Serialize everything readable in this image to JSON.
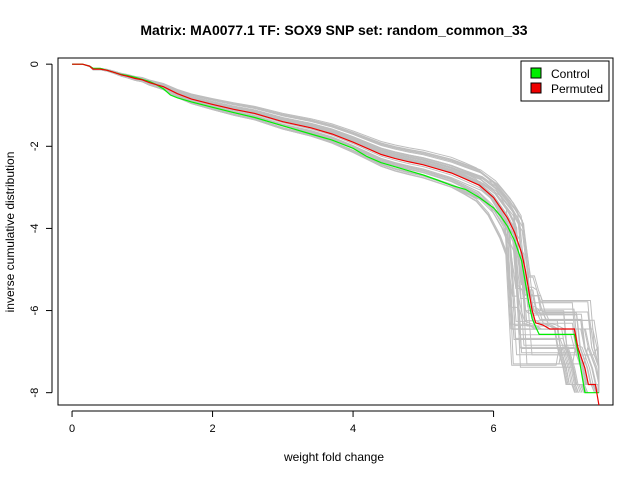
{
  "chart_data": {
    "type": "line",
    "title": "Matrix: MA0077.1 TF: SOX9 SNP set: random_common_33",
    "xlabel": "weight fold change",
    "ylabel": "inverse cumulative distribution",
    "xlim": [
      -0.2,
      7.7
    ],
    "ylim": [
      -8.3,
      0.15
    ],
    "x_ticks": [
      0,
      2,
      4,
      6
    ],
    "y_ticks": [
      0,
      -2,
      -4,
      -6,
      -8
    ],
    "grid": false,
    "legend_position": "top-right",
    "series": [
      {
        "name": "Control",
        "color": "#00ee00",
        "x": [
          0,
          0.15,
          0.25,
          0.3,
          0.4,
          0.5,
          0.6,
          0.7,
          0.8,
          0.9,
          1.0,
          1.1,
          1.2,
          1.3,
          1.4,
          1.5,
          1.7,
          2.0,
          2.3,
          2.6,
          3.0,
          3.4,
          3.7,
          4.0,
          4.2,
          4.4,
          4.6,
          4.8,
          5.0,
          5.2,
          5.4,
          5.6,
          5.8,
          6.0,
          6.1,
          6.2,
          6.3,
          6.4,
          6.45,
          6.5,
          6.55,
          6.6,
          6.65,
          6.7,
          6.8,
          7.0,
          7.1,
          7.15,
          7.2,
          7.25,
          7.3,
          7.4,
          7.45,
          7.5
        ],
        "y": [
          0,
          0,
          -0.05,
          -0.1,
          -0.1,
          -0.15,
          -0.2,
          -0.25,
          -0.28,
          -0.32,
          -0.37,
          -0.42,
          -0.5,
          -0.6,
          -0.75,
          -0.82,
          -0.92,
          -1.05,
          -1.18,
          -1.3,
          -1.5,
          -1.7,
          -1.85,
          -2.05,
          -2.25,
          -2.4,
          -2.5,
          -2.6,
          -2.7,
          -2.82,
          -2.95,
          -3.05,
          -3.25,
          -3.5,
          -3.7,
          -3.95,
          -4.3,
          -4.8,
          -5.3,
          -5.8,
          -6.2,
          -6.4,
          -6.58,
          -6.58,
          -6.58,
          -6.58,
          -6.58,
          -6.58,
          -7.0,
          -7.5,
          -8.0,
          -8.0,
          -8.0,
          -8.0
        ]
      },
      {
        "name": "Permuted",
        "color": "#ee0000",
        "x": [
          0,
          0.15,
          0.25,
          0.3,
          0.4,
          0.5,
          0.6,
          0.7,
          0.8,
          0.9,
          1.0,
          1.1,
          1.2,
          1.3,
          1.5,
          1.7,
          2.0,
          2.3,
          2.6,
          3.0,
          3.4,
          3.7,
          4.0,
          4.2,
          4.4,
          4.6,
          4.8,
          5.0,
          5.2,
          5.4,
          5.6,
          5.8,
          6.0,
          6.1,
          6.2,
          6.3,
          6.4,
          6.45,
          6.5,
          6.55,
          6.6,
          6.7,
          6.8,
          7.0,
          7.15,
          7.2,
          7.3,
          7.35,
          7.45,
          7.5
        ],
        "y": [
          0,
          0,
          -0.05,
          -0.12,
          -0.12,
          -0.15,
          -0.2,
          -0.26,
          -0.3,
          -0.35,
          -0.38,
          -0.45,
          -0.5,
          -0.55,
          -0.72,
          -0.85,
          -0.98,
          -1.1,
          -1.2,
          -1.4,
          -1.55,
          -1.7,
          -1.9,
          -2.05,
          -2.2,
          -2.3,
          -2.38,
          -2.45,
          -2.55,
          -2.65,
          -2.8,
          -2.95,
          -3.25,
          -3.5,
          -3.75,
          -4.1,
          -4.6,
          -5.0,
          -5.5,
          -6.0,
          -6.3,
          -6.35,
          -6.45,
          -6.45,
          -6.45,
          -6.9,
          -7.4,
          -7.8,
          -7.8,
          -8.3
        ]
      }
    ]
  }
}
